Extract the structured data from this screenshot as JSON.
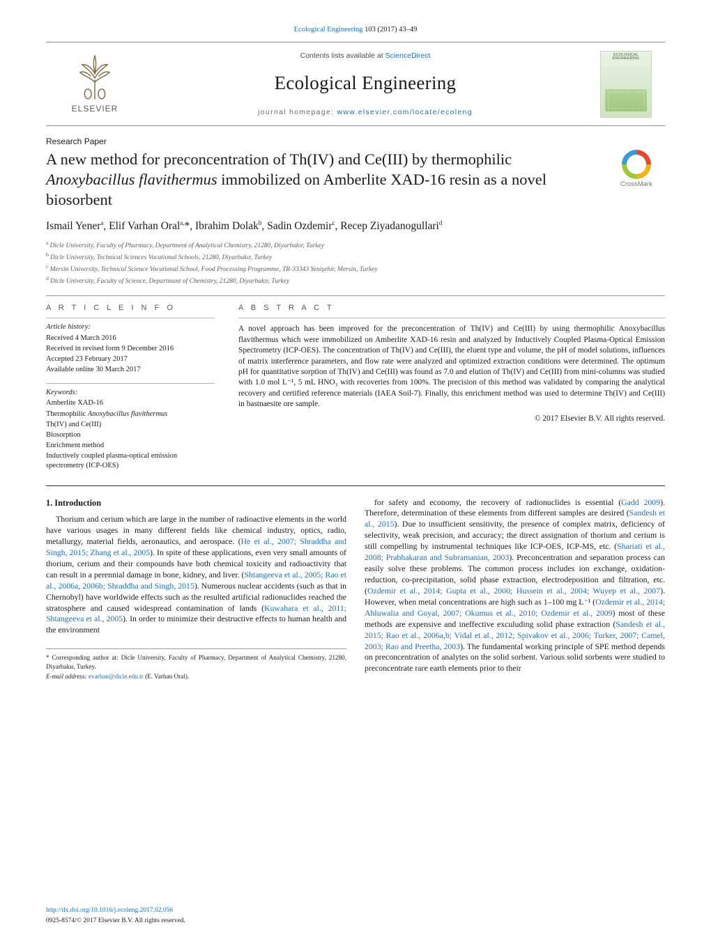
{
  "colors": {
    "link": "#1a6eb8",
    "text": "#1a1a1a",
    "muted": "#6a6a6a",
    "rule": "#9a9a9a",
    "cover_bg_top": "#eaf2e3",
    "cover_bg_bot": "#cfe3c4"
  },
  "typography": {
    "body_family": "Times New Roman",
    "body_size_pt": 9,
    "title_size_pt": 17,
    "authors_size_pt": 12,
    "abstract_size_pt": 8.6,
    "small_size_pt": 7.2
  },
  "top_citation": {
    "journal_link": "Ecological Engineering",
    "citation_tail": " 103 (2017) 43–49"
  },
  "masthead": {
    "publisher_logo_label": "elsevier-tree-logo",
    "publisher_word": "ELSEVIER",
    "contents_prefix": "Contents lists available at ",
    "contents_link": "ScienceDirect",
    "journal_name": "Ecological Engineering",
    "homepage_prefix": "journal homepage: ",
    "homepage_link": "www.elsevier.com/locate/ecoleng",
    "cover_title": "ECOLOGICAL ENGINEERING"
  },
  "paper_type": "Research Paper",
  "title": {
    "pre": "A new method for preconcentration of Th(IV) and Ce(III) by thermophilic ",
    "ital": "Anoxybacillus flavithermus",
    "post": " immobilized on Amberlite XAD-16 resin as a novel biosorbent"
  },
  "crossmark_label": "CrossMark",
  "authors_html": "Ismail Yener<sup>a</sup>, Elif Varhan Oral<sup>a,</sup>*, Ibrahim Dolak<sup>b</sup>, Sadin Ozdemir<sup>c</sup>, Recep Ziyadanogullari<sup>d</sup>",
  "affiliations": {
    "a": "Dicle University, Faculty of Pharmacy, Department of Analytical Chemistry, 21280, Diyarbakır, Turkey",
    "b": "Dicle University, Technical Sciences Vocational Schools, 21280, Diyarbakır, Turkey",
    "c": "Mersin University, Technical Science Vocational School, Food Processing Programme, TR-33343 Yenişehir, Mersin, Turkey",
    "d": "Dicle University, Faculty of Science, Departmant of Chemistry, 21280, Diyarbakır, Turkey"
  },
  "article_info": {
    "heading": "A R T I C L E   I N F O",
    "history_label": "Article history:",
    "received": "Received 4 March 2016",
    "revised": "Received in revised form 9 December 2016",
    "accepted": "Accepted 23 February 2017",
    "online": "Available online 30 March 2017",
    "keywords_label": "Keywords:",
    "keywords": [
      "Amberlite XAD-16",
      "Thermophilic Anoxybacillus flavithermus",
      "Th(IV) and Ce(III)",
      "Biosorption",
      "Enrichment method",
      "Inductively coupled plasma-optical emission spectrometry (ICP-OES)"
    ]
  },
  "abstract": {
    "heading": "A B S T R A C T",
    "text": "A novel approach has been improved for the preconcentration of Th(IV) and Ce(III) by using thermophilic Anoxybacillus flavithermus which were immobilized on Amberlite XAD-16 resin and analyzed by Inductively Coupled Plasma-Optical Emission Spectrometry (ICP-OES). The concentration of Th(IV) and Ce(III), the eluent type and volume, the pH of model solutions, influences of matrix interference parameters, and flow rate were analyzed and optimized extraction conditions were determined. The optimum pH for quantitative sorption of Th(IV) and Ce(III) was found as 7.0 and elution of Th(IV) and Ce(III) from mini-columns was studied with 1.0 mol L⁻¹, 5 mL HNO₃ with recoveries from 100%. The precision of this method was validated by comparing the analytical recovery and certified reference materials (IAEA Soil-7). Finally, this enrichment method was used to determine Th(IV) and Ce(III) in bastnaesite ore sample.",
    "copyright": "© 2017 Elsevier B.V. All rights reserved."
  },
  "intro": {
    "heading": "1.  Introduction",
    "para": "Thorium and cerium which are large in the number of radioactive elements in the world have various usages in many different fields like chemical industry, optics, radio, metallurgy, material fields, aeronautics, and aerospace. (He et al., 2007; Shraddha and Singh, 2015; Zhang et al., 2005). In spite of these applications, even very small amounts of thorium, cerium and their compounds have both chemical toxicity and radioactivity that can result in a perennial damage in bone, kidney, and liver. (Shtangeeva et al., 2005; Rao et al., 2006a, 2006b; Shraddha and Singh, 2015). Numerous nuclear accidents (such as that in Chernobyl) have worldwide effects such as the resulted artificial radionuclides reached the stratosphere and caused widespread contamination of lands (Kuwahara et al., 2011; Shtangeeva et al., 2005). In order to minimize their destructive effects to human health and the environment",
    "para2": "for safety and economy, the recovery of radionuclides is essential (Gadd 2009). Therefore, determination of these elements from different samples are desired (Sandesh et al., 2015). Due to insufficient sensitivity, the presence of complex matrix, deficiency of selectivity, weak precision, and accuracy; the direct assignation of thorium and cerium is still compelling by instrumental techniques like ICP-OES, ICP-MS, etc. (Shariati et al., 2008; Prabhakaran and Subramanian, 2003). Preconcentration and separation process can easily solve these problems. The common process includes ion exchange, oxidation-reduction, co-precipitation, solid phase extraction, electrodeposition and filtration, etc. (Ozdemir et al., 2014; Gupta et al., 2000; Hussein et al., 2004; Wuyep et al., 2007). However, when metal concentrations are high such as 1–100 mg L⁻¹ (Ozdemir et al., 2014; Ahluwalia and Goyal, 2007; Okumus et al., 2010; Ozdemir et al., 2009) most of these methods are expensive and ineffective exculuding solid phase extraction (Sandesh et al., 2015; Rao et al., 2006a,b; Vidal et al., 2012; Spivakov et al., 2006; Turker, 2007; Camel, 2003; Rao and Preetha, 2003). The fundamental working principle of SPE method depends on preconcentration of analytes on the solid sorbent. Various solid sorbents were studied to preconcentrate rare earth elements prior to their"
  },
  "footnote": {
    "corr": "* Corresponding author at: Dicle University, Faculty of Pharmacy, Department of Analytical Chemistry, 21280, Diyarbakır, Turkey.",
    "email_label": "E-mail address: ",
    "email": "evarhan@dicle.edu.tr",
    "email_tail": " (E. Varhan Oral)."
  },
  "footer": {
    "doi": "http://dx.doi.org/10.1016/j.ecoleng.2017.02.056",
    "issn_line": "0925-8574/© 2017 Elsevier B.V. All rights reserved."
  }
}
